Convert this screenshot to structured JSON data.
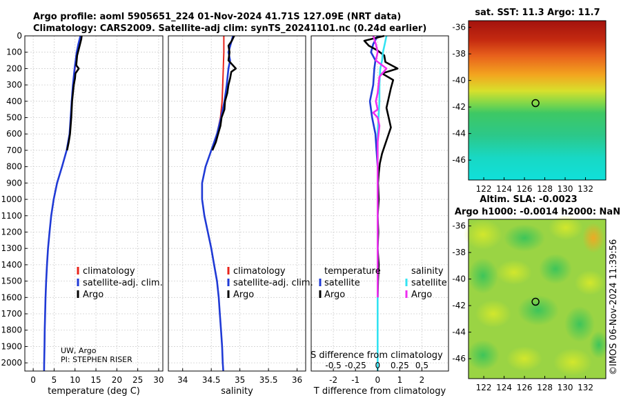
{
  "header": {
    "title_line1": "Argo profile: aoml 5905651_224 01-Nov-2024 41.71S 127.09E (NRT data)",
    "title_line2": "Climatology: CARS2009. Satellite-adj clim: synTS_20241101.nc (0.24d earlier)"
  },
  "info": {
    "line1": "UW, Argo",
    "line2": "PI: STEPHEN RISER"
  },
  "copyright": "©IMOS 06-Nov-2024 11:39:56",
  "colors": {
    "climatology": "#e8231a",
    "satellite": "#1f3ad6",
    "argo": "#000000",
    "salinity_satellite": "#33e3f2",
    "salinity_argo": "#ee2ef0"
  },
  "chart_data": [
    {
      "type": "line",
      "id": "temperature",
      "xlabel": "temperature (deg C)",
      "ylabel": "",
      "xlim": [
        -2,
        31
      ],
      "ylim": [
        2050,
        0
      ],
      "xticks": [
        0,
        5,
        10,
        15,
        20,
        25,
        30
      ],
      "yticks": [
        0,
        100,
        200,
        300,
        400,
        500,
        600,
        700,
        800,
        900,
        1000,
        1100,
        1200,
        1300,
        1400,
        1500,
        1600,
        1700,
        1800,
        1900,
        2000
      ],
      "legend": [
        "climatology",
        "satellite-adj. clim.",
        "Argo"
      ],
      "series": [
        {
          "name": "climatology",
          "depth": [
            0,
            50,
            100,
            200,
            300,
            400,
            500,
            600,
            700,
            800,
            900,
            1000,
            1100,
            1200,
            1300,
            1400,
            1500,
            1600,
            1700,
            1800,
            1900,
            2000,
            2050
          ],
          "values": [
            11.3,
            11.0,
            10.6,
            10.0,
            9.6,
            9.3,
            9.0,
            8.7,
            8.0,
            6.9,
            5.7,
            4.9,
            4.3,
            3.9,
            3.55,
            3.3,
            3.1,
            2.95,
            2.85,
            2.75,
            2.7,
            2.62,
            2.6
          ]
        },
        {
          "name": "satellite-adj. clim.",
          "depth": [
            0,
            50,
            100,
            200,
            300,
            400,
            500,
            600,
            700,
            800,
            900,
            1000,
            1100,
            1200,
            1300,
            1400,
            1500,
            1600,
            1700,
            1800,
            1900,
            2000,
            2050
          ],
          "values": [
            11.3,
            10.8,
            10.4,
            9.9,
            9.5,
            9.2,
            8.95,
            8.7,
            8.0,
            6.9,
            5.7,
            4.9,
            4.3,
            3.9,
            3.55,
            3.3,
            3.1,
            2.95,
            2.85,
            2.75,
            2.7,
            2.62,
            2.6
          ]
        },
        {
          "name": "Argo",
          "depth": [
            0,
            20,
            50,
            80,
            120,
            180,
            200,
            230,
            260,
            300,
            350,
            400,
            450,
            500,
            550,
            600,
            650,
            700
          ],
          "values": [
            11.6,
            11.5,
            11.2,
            10.9,
            10.5,
            10.3,
            10.9,
            10.1,
            10.0,
            9.7,
            9.5,
            9.3,
            9.2,
            9.1,
            8.95,
            8.8,
            8.5,
            8.1
          ]
        }
      ]
    },
    {
      "type": "line",
      "id": "salinity",
      "xlabel": "salinity",
      "ylabel": "",
      "xlim": [
        33.75,
        36.15
      ],
      "ylim": [
        2050,
        0
      ],
      "xticks": [
        34,
        34.5,
        35,
        35.5,
        36
      ],
      "legend": [
        "climatology",
        "satellite-adj. clim.",
        "Argo"
      ],
      "series": [
        {
          "name": "climatology",
          "depth": [
            0,
            100,
            200,
            300,
            400,
            500,
            600,
            700,
            800,
            900,
            1000,
            1100,
            1200,
            1300,
            1400,
            1500,
            1600,
            1700,
            1800,
            1900,
            2000,
            2050
          ],
          "values": [
            34.72,
            34.72,
            34.71,
            34.7,
            34.69,
            34.66,
            34.6,
            34.5,
            34.4,
            34.34,
            34.34,
            34.38,
            34.44,
            34.5,
            34.55,
            34.6,
            34.63,
            34.65,
            34.67,
            34.69,
            34.7,
            34.71
          ]
        },
        {
          "name": "satellite-adj. clim.",
          "depth": [
            0,
            50,
            100,
            150,
            200,
            300,
            400,
            500,
            600,
            700,
            800,
            900,
            1000,
            1100,
            1200,
            1300,
            1400,
            1500,
            1600,
            1700,
            1800,
            1900,
            2000,
            2050
          ],
          "values": [
            34.88,
            34.84,
            34.8,
            34.83,
            34.8,
            34.77,
            34.73,
            34.67,
            34.6,
            34.5,
            34.4,
            34.34,
            34.34,
            34.38,
            34.44,
            34.5,
            34.55,
            34.6,
            34.63,
            34.65,
            34.67,
            34.69,
            34.7,
            34.71
          ]
        },
        {
          "name": "Argo",
          "depth": [
            0,
            30,
            60,
            100,
            150,
            200,
            220,
            260,
            300,
            350,
            400,
            450,
            500,
            550,
            600,
            650,
            700
          ],
          "values": [
            34.9,
            34.86,
            34.8,
            34.82,
            34.8,
            34.93,
            34.85,
            34.83,
            34.8,
            34.78,
            34.74,
            34.73,
            34.68,
            34.66,
            34.62,
            34.58,
            34.52
          ]
        }
      ]
    },
    {
      "type": "line",
      "id": "difference",
      "xlabel": "T difference from climatology",
      "ylabel": "",
      "secondary_xlabel": "S difference from climatology",
      "xlim": [
        -3,
        3.2
      ],
      "ylim": [
        2050,
        0
      ],
      "xticks": [
        -2,
        -1,
        0,
        1,
        2
      ],
      "secondary_xticks": [
        "-0.5",
        "-0.25",
        "0",
        "0.25",
        "0.5"
      ],
      "legend_headers": [
        "temperature",
        "salinity"
      ],
      "legend": [
        "satellite",
        "Argo",
        "satellite",
        "Argo"
      ],
      "series": [
        {
          "name": "temperature satellite",
          "depth": [
            0,
            50,
            100,
            150,
            200,
            300,
            400,
            500,
            600,
            700,
            800,
            900,
            1000,
            1100,
            1200,
            1300,
            1400,
            1500,
            1600
          ],
          "values": [
            0,
            -0.2,
            -0.3,
            -0.1,
            -0.15,
            -0.2,
            -0.35,
            -0.25,
            -0.1,
            -0.05,
            0,
            0,
            0,
            0,
            0,
            0,
            0,
            0,
            0
          ]
        },
        {
          "name": "temperature Argo",
          "depth": [
            0,
            30,
            60,
            90,
            120,
            160,
            200,
            230,
            270,
            320,
            380,
            440,
            500,
            560,
            620,
            680,
            720,
            780,
            840,
            900,
            1000,
            1100,
            1200,
            1300,
            1400,
            1500,
            1600
          ],
          "values": [
            0.3,
            -0.6,
            -0.4,
            0.0,
            0.3,
            0.35,
            0.9,
            0.2,
            0.7,
            0.6,
            0.5,
            0.4,
            0.5,
            0.6,
            0.45,
            0.3,
            0.2,
            0.1,
            0.05,
            0.02,
            0.05,
            0.0,
            0.03,
            0.0,
            0.05,
            0.02,
            0
          ]
        },
        {
          "name": "salinity satellite",
          "depth": [
            0,
            50,
            100,
            150,
            200,
            300,
            400,
            500,
            600,
            700,
            800,
            900,
            1000,
            1100,
            1200,
            1300,
            1400,
            1500,
            1600,
            1700,
            1800,
            1900,
            2000,
            2050
          ],
          "values": [
            0.1,
            0.08,
            0.06,
            0.05,
            0.03,
            0.02,
            0.02,
            0.01,
            0.0,
            0.0,
            0.0,
            0.0,
            0.0,
            0.0,
            0.0,
            0.0,
            0.0,
            0.0,
            0.0,
            0.0,
            0.0,
            0.0,
            0.0,
            0.0
          ]
        },
        {
          "name": "salinity Argo",
          "depth": [
            0,
            50,
            100,
            150,
            200,
            250,
            300,
            350,
            400,
            450,
            470,
            500,
            550,
            600,
            650,
            700,
            800,
            900,
            1000,
            1100,
            1200,
            1300,
            1400,
            1500,
            1600
          ],
          "values": [
            -0.05,
            -0.02,
            0.0,
            -0.02,
            0.1,
            0.02,
            0.01,
            0.0,
            -0.02,
            0.0,
            -0.05,
            0.0,
            0.02,
            0.01,
            0.0,
            0.0,
            0.0,
            0.0,
            0.0,
            0.0,
            0.0,
            0.0,
            0.0,
            0.0,
            0.0
          ]
        }
      ]
    },
    {
      "type": "heatmap",
      "id": "sst_map",
      "title": "sat. SST: 11.3 Argo: 11.7",
      "xticks": [
        122,
        124,
        126,
        128,
        130,
        132
      ],
      "yticks": [
        -36,
        -38,
        -40,
        -42,
        -44,
        -46
      ],
      "xlim": [
        120.5,
        134
      ],
      "ylim": [
        -47.5,
        -35.5
      ],
      "argo_position": {
        "lon": 127.09,
        "lat": -41.71
      }
    },
    {
      "type": "heatmap",
      "id": "sla_map",
      "title_line1": "Altim. SLA: -0.0023",
      "title_line2": "Argo h1000: -0.0014 h2000: NaN",
      "xticks": [
        122,
        124,
        126,
        128,
        130,
        132
      ],
      "yticks": [
        -36,
        -38,
        -40,
        -42,
        -44,
        -46
      ],
      "xlim": [
        120.5,
        134
      ],
      "ylim": [
        -47.5,
        -35.5
      ],
      "argo_position": {
        "lon": 127.09,
        "lat": -41.71
      }
    }
  ]
}
